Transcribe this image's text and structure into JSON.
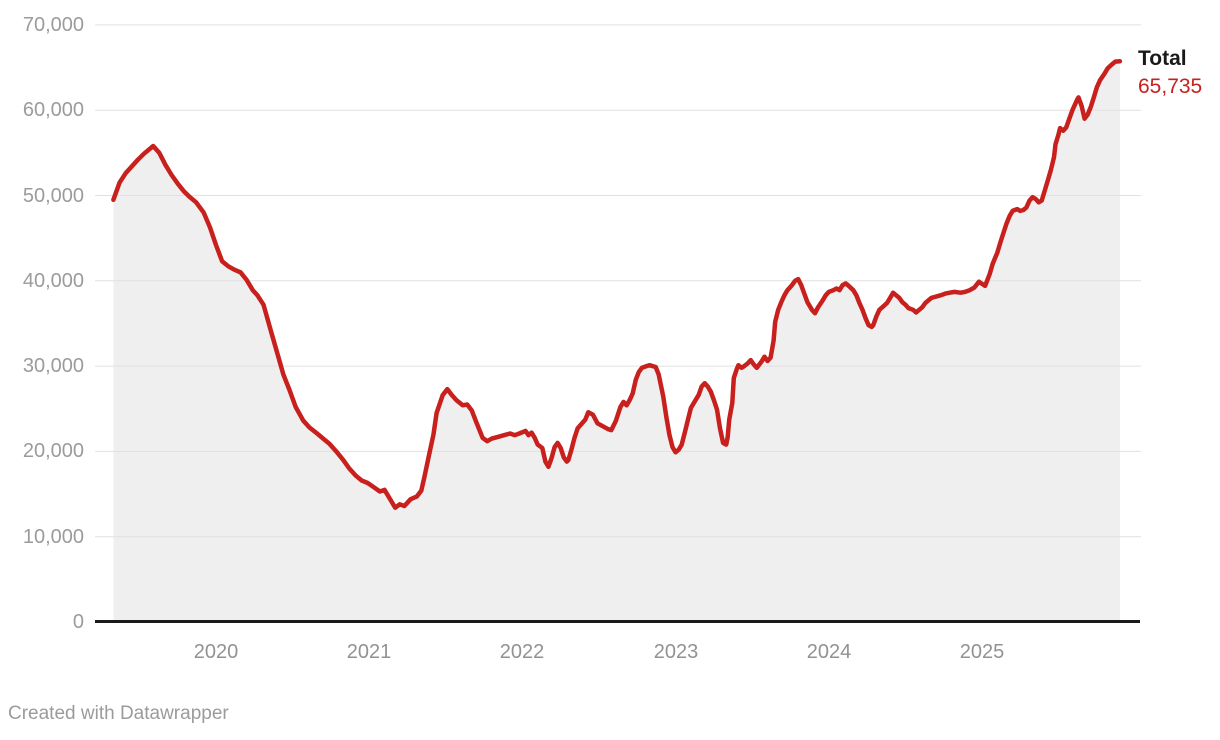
{
  "footer": {
    "credit": "Created with Datawrapper"
  },
  "chart_data": {
    "type": "line",
    "area_fill": true,
    "grid": "horizontal",
    "title": "",
    "xlabel": "",
    "ylabel": "",
    "x_domain": [
      2019.33,
      2025.9
    ],
    "y_domain": [
      0,
      70000
    ],
    "legend_position": "end-of-line",
    "colors": {
      "line": "#c7201d",
      "area": "#efefef",
      "grid": "#e1e1e1",
      "axis": "#1a1a1a",
      "tick_text": "#9b9b9b"
    },
    "x_ticks": [
      {
        "value": 2020,
        "label": "2020"
      },
      {
        "value": 2021,
        "label": "2021"
      },
      {
        "value": 2022,
        "label": "2022"
      },
      {
        "value": 2023,
        "label": "2023"
      },
      {
        "value": 2024,
        "label": "2024"
      },
      {
        "value": 2025,
        "label": "2025"
      }
    ],
    "y_ticks": [
      {
        "value": 70000,
        "label": "70,000"
      },
      {
        "value": 60000,
        "label": "60,000"
      },
      {
        "value": 50000,
        "label": "50,000"
      },
      {
        "value": 40000,
        "label": "40,000"
      },
      {
        "value": 30000,
        "label": "30,000"
      },
      {
        "value": 20000,
        "label": "20,000"
      },
      {
        "value": 10000,
        "label": "10,000"
      },
      {
        "value": 0,
        "label": "0"
      }
    ],
    "series": [
      {
        "name": "Total",
        "end_value": 65735,
        "end_label": "65,735",
        "points": [
          [
            2019.33,
            49500
          ],
          [
            2019.37,
            51500
          ],
          [
            2019.41,
            52600
          ],
          [
            2019.45,
            53400
          ],
          [
            2019.49,
            54200
          ],
          [
            2019.53,
            54900
          ],
          [
            2019.59,
            55800
          ],
          [
            2019.63,
            55000
          ],
          [
            2019.67,
            53600
          ],
          [
            2019.71,
            52400
          ],
          [
            2019.75,
            51400
          ],
          [
            2019.79,
            50500
          ],
          [
            2019.83,
            49800
          ],
          [
            2019.87,
            49200
          ],
          [
            2019.92,
            48000
          ],
          [
            2019.96,
            46300
          ],
          [
            2020.0,
            44200
          ],
          [
            2020.04,
            42300
          ],
          [
            2020.08,
            41700
          ],
          [
            2020.12,
            41300
          ],
          [
            2020.16,
            41000
          ],
          [
            2020.2,
            40100
          ],
          [
            2020.24,
            38900
          ],
          [
            2020.27,
            38300
          ],
          [
            2020.31,
            37200
          ],
          [
            2020.36,
            34000
          ],
          [
            2020.4,
            31500
          ],
          [
            2020.44,
            29000
          ],
          [
            2020.48,
            27200
          ],
          [
            2020.52,
            25200
          ],
          [
            2020.57,
            23600
          ],
          [
            2020.61,
            22800
          ],
          [
            2020.66,
            22100
          ],
          [
            2020.7,
            21500
          ],
          [
            2020.74,
            20900
          ],
          [
            2020.79,
            19900
          ],
          [
            2020.83,
            19000
          ],
          [
            2020.87,
            18000
          ],
          [
            2020.91,
            17200
          ],
          [
            2020.95,
            16600
          ],
          [
            2020.99,
            16300
          ],
          [
            2021.03,
            15800
          ],
          [
            2021.07,
            15300
          ],
          [
            2021.1,
            15500
          ],
          [
            2021.14,
            14300
          ],
          [
            2021.17,
            13400
          ],
          [
            2021.2,
            13800
          ],
          [
            2021.23,
            13600
          ],
          [
            2021.27,
            14400
          ],
          [
            2021.31,
            14700
          ],
          [
            2021.34,
            15400
          ],
          [
            2021.36,
            17000
          ],
          [
            2021.39,
            19500
          ],
          [
            2021.42,
            22000
          ],
          [
            2021.44,
            24500
          ],
          [
            2021.48,
            26600
          ],
          [
            2021.51,
            27300
          ],
          [
            2021.54,
            26600
          ],
          [
            2021.57,
            26000
          ],
          [
            2021.61,
            25400
          ],
          [
            2021.64,
            25500
          ],
          [
            2021.67,
            24800
          ],
          [
            2021.7,
            23400
          ],
          [
            2021.74,
            21600
          ],
          [
            2021.77,
            21200
          ],
          [
            2021.8,
            21500
          ],
          [
            2021.84,
            21700
          ],
          [
            2021.88,
            21900
          ],
          [
            2021.92,
            22100
          ],
          [
            2021.95,
            21900
          ],
          [
            2021.98,
            22100
          ],
          [
            2022.02,
            22400
          ],
          [
            2022.04,
            21900
          ],
          [
            2022.06,
            22200
          ],
          [
            2022.08,
            21600
          ],
          [
            2022.1,
            20800
          ],
          [
            2022.13,
            20400
          ],
          [
            2022.15,
            18800
          ],
          [
            2022.17,
            18200
          ],
          [
            2022.19,
            19200
          ],
          [
            2022.21,
            20500
          ],
          [
            2022.23,
            21000
          ],
          [
            2022.25,
            20400
          ],
          [
            2022.27,
            19300
          ],
          [
            2022.29,
            18800
          ],
          [
            2022.3,
            19000
          ],
          [
            2022.32,
            20200
          ],
          [
            2022.34,
            21600
          ],
          [
            2022.36,
            22700
          ],
          [
            2022.39,
            23300
          ],
          [
            2022.41,
            23700
          ],
          [
            2022.43,
            24600
          ],
          [
            2022.46,
            24300
          ],
          [
            2022.49,
            23300
          ],
          [
            2022.53,
            22900
          ],
          [
            2022.56,
            22600
          ],
          [
            2022.58,
            22500
          ],
          [
            2022.61,
            23600
          ],
          [
            2022.64,
            25200
          ],
          [
            2022.66,
            25800
          ],
          [
            2022.68,
            25400
          ],
          [
            2022.7,
            26000
          ],
          [
            2022.72,
            26800
          ],
          [
            2022.74,
            28400
          ],
          [
            2022.76,
            29300
          ],
          [
            2022.78,
            29800
          ],
          [
            2022.81,
            30000
          ],
          [
            2022.83,
            30100
          ],
          [
            2022.87,
            29900
          ],
          [
            2022.89,
            29000
          ],
          [
            2022.9,
            28100
          ],
          [
            2022.92,
            26400
          ],
          [
            2022.94,
            24000
          ],
          [
            2022.96,
            21900
          ],
          [
            2022.98,
            20500
          ],
          [
            2023.0,
            19900
          ],
          [
            2023.02,
            20200
          ],
          [
            2023.04,
            20800
          ],
          [
            2023.06,
            22200
          ],
          [
            2023.08,
            23700
          ],
          [
            2023.1,
            25100
          ],
          [
            2023.13,
            26000
          ],
          [
            2023.15,
            26600
          ],
          [
            2023.17,
            27600
          ],
          [
            2023.19,
            28000
          ],
          [
            2023.21,
            27600
          ],
          [
            2023.23,
            27000
          ],
          [
            2023.25,
            26000
          ],
          [
            2023.27,
            24900
          ],
          [
            2023.29,
            22700
          ],
          [
            2023.31,
            21000
          ],
          [
            2023.33,
            20800
          ],
          [
            2023.34,
            21700
          ],
          [
            2023.35,
            23700
          ],
          [
            2023.37,
            25700
          ],
          [
            2023.38,
            28600
          ],
          [
            2023.4,
            29700
          ],
          [
            2023.41,
            30100
          ],
          [
            2023.43,
            29800
          ],
          [
            2023.44,
            29900
          ],
          [
            2023.47,
            30300
          ],
          [
            2023.49,
            30700
          ],
          [
            2023.51,
            30200
          ],
          [
            2023.53,
            29800
          ],
          [
            2023.56,
            30500
          ],
          [
            2023.58,
            31100
          ],
          [
            2023.6,
            30600
          ],
          [
            2023.62,
            31000
          ],
          [
            2023.64,
            33000
          ],
          [
            2023.65,
            35200
          ],
          [
            2023.67,
            36600
          ],
          [
            2023.69,
            37500
          ],
          [
            2023.71,
            38300
          ],
          [
            2023.73,
            38900
          ],
          [
            2023.76,
            39500
          ],
          [
            2023.78,
            40000
          ],
          [
            2023.8,
            40200
          ],
          [
            2023.82,
            39500
          ],
          [
            2023.84,
            38500
          ],
          [
            2023.86,
            37500
          ],
          [
            2023.89,
            36600
          ],
          [
            2023.91,
            36200
          ],
          [
            2023.93,
            36900
          ],
          [
            2023.96,
            37700
          ],
          [
            2023.98,
            38300
          ],
          [
            2024.0,
            38700
          ],
          [
            2024.03,
            38900
          ],
          [
            2024.05,
            39100
          ],
          [
            2024.07,
            38900
          ],
          [
            2024.09,
            39500
          ],
          [
            2024.11,
            39700
          ],
          [
            2024.13,
            39400
          ],
          [
            2024.16,
            38900
          ],
          [
            2024.18,
            38300
          ],
          [
            2024.2,
            37400
          ],
          [
            2024.22,
            36600
          ],
          [
            2024.24,
            35600
          ],
          [
            2024.26,
            34800
          ],
          [
            2024.28,
            34600
          ],
          [
            2024.29,
            34800
          ],
          [
            2024.31,
            35800
          ],
          [
            2024.33,
            36600
          ],
          [
            2024.35,
            36900
          ],
          [
            2024.38,
            37400
          ],
          [
            2024.4,
            38000
          ],
          [
            2024.42,
            38600
          ],
          [
            2024.44,
            38300
          ],
          [
            2024.46,
            38000
          ],
          [
            2024.48,
            37500
          ],
          [
            2024.5,
            37200
          ],
          [
            2024.52,
            36800
          ],
          [
            2024.55,
            36600
          ],
          [
            2024.57,
            36300
          ],
          [
            2024.59,
            36600
          ],
          [
            2024.61,
            36900
          ],
          [
            2024.63,
            37400
          ],
          [
            2024.65,
            37700
          ],
          [
            2024.67,
            38000
          ],
          [
            2024.69,
            38100
          ],
          [
            2024.73,
            38300
          ],
          [
            2024.76,
            38500
          ],
          [
            2024.79,
            38600
          ],
          [
            2024.82,
            38700
          ],
          [
            2024.86,
            38600
          ],
          [
            2024.89,
            38700
          ],
          [
            2024.92,
            38900
          ],
          [
            2024.95,
            39200
          ],
          [
            2024.98,
            39900
          ],
          [
            2025.02,
            39400
          ],
          [
            2025.05,
            40800
          ],
          [
            2025.07,
            42000
          ],
          [
            2025.1,
            43300
          ],
          [
            2025.12,
            44500
          ],
          [
            2025.14,
            45600
          ],
          [
            2025.16,
            46700
          ],
          [
            2025.18,
            47600
          ],
          [
            2025.2,
            48200
          ],
          [
            2025.23,
            48400
          ],
          [
            2025.25,
            48200
          ],
          [
            2025.27,
            48300
          ],
          [
            2025.29,
            48600
          ],
          [
            2025.31,
            49400
          ],
          [
            2025.33,
            49800
          ],
          [
            2025.35,
            49600
          ],
          [
            2025.37,
            49200
          ],
          [
            2025.39,
            49400
          ],
          [
            2025.41,
            50600
          ],
          [
            2025.43,
            51800
          ],
          [
            2025.45,
            53000
          ],
          [
            2025.47,
            54500
          ],
          [
            2025.48,
            56000
          ],
          [
            2025.5,
            57200
          ],
          [
            2025.51,
            57900
          ],
          [
            2025.53,
            57600
          ],
          [
            2025.55,
            58000
          ],
          [
            2025.57,
            59000
          ],
          [
            2025.59,
            60000
          ],
          [
            2025.62,
            61200
          ],
          [
            2025.63,
            61500
          ],
          [
            2025.65,
            60500
          ],
          [
            2025.67,
            59000
          ],
          [
            2025.69,
            59500
          ],
          [
            2025.71,
            60400
          ],
          [
            2025.73,
            61500
          ],
          [
            2025.75,
            62700
          ],
          [
            2025.77,
            63500
          ],
          [
            2025.8,
            64300
          ],
          [
            2025.82,
            64900
          ],
          [
            2025.85,
            65400
          ],
          [
            2025.87,
            65700
          ],
          [
            2025.9,
            65735
          ]
        ]
      }
    ]
  }
}
